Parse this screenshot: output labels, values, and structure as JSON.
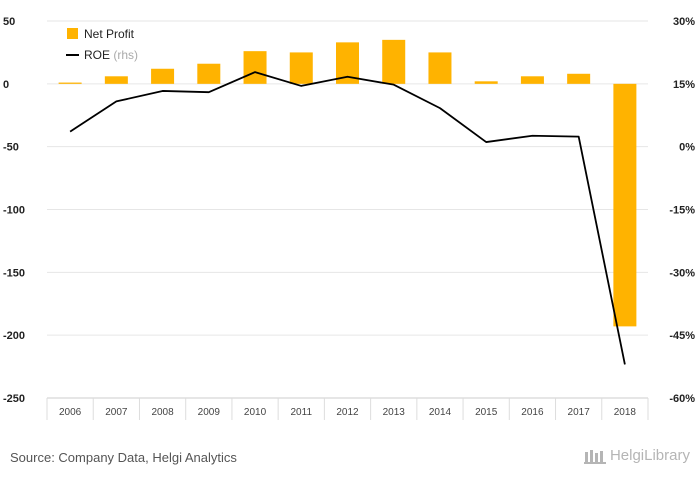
{
  "chart_data": {
    "type": "bar",
    "categories": [
      "2006",
      "2007",
      "2008",
      "2009",
      "2010",
      "2011",
      "2012",
      "2013",
      "2014",
      "2015",
      "2016",
      "2017",
      "2018"
    ],
    "series": [
      {
        "name": "Net Profit",
        "type": "bar",
        "axis": "left",
        "color": "#FFB300",
        "values": [
          1,
          6,
          12,
          16,
          26,
          25,
          33,
          35,
          25,
          2,
          6,
          8,
          -193
        ]
      },
      {
        "name": "ROE",
        "name_suffix": "(rhs)",
        "type": "line",
        "axis": "right",
        "color": "#000000",
        "values": [
          3.6,
          10.8,
          13.3,
          13.0,
          17.8,
          14.5,
          16.7,
          14.8,
          9.2,
          1.1,
          2.6,
          2.4,
          -52.0
        ]
      }
    ],
    "left_axis": {
      "min": -250,
      "max": 50,
      "ticks": [
        50,
        0,
        -50,
        -100,
        -150,
        -200,
        -250
      ],
      "tick_labels": [
        "50",
        "0",
        "-50",
        "-100",
        "-150",
        "-200",
        "-250"
      ]
    },
    "right_axis": {
      "min": -60,
      "max": 30,
      "ticks": [
        30,
        15,
        0,
        -15,
        -30,
        -45,
        -60
      ],
      "tick_labels": [
        "30%",
        "15%",
        "0%",
        "-15%",
        "-30%",
        "-45%",
        "-60%"
      ]
    },
    "grid": true,
    "legend_position": "top-left"
  },
  "footer": {
    "source": "Source: Company Data, Helgi Analytics",
    "brand": "HelgiLibrary"
  }
}
